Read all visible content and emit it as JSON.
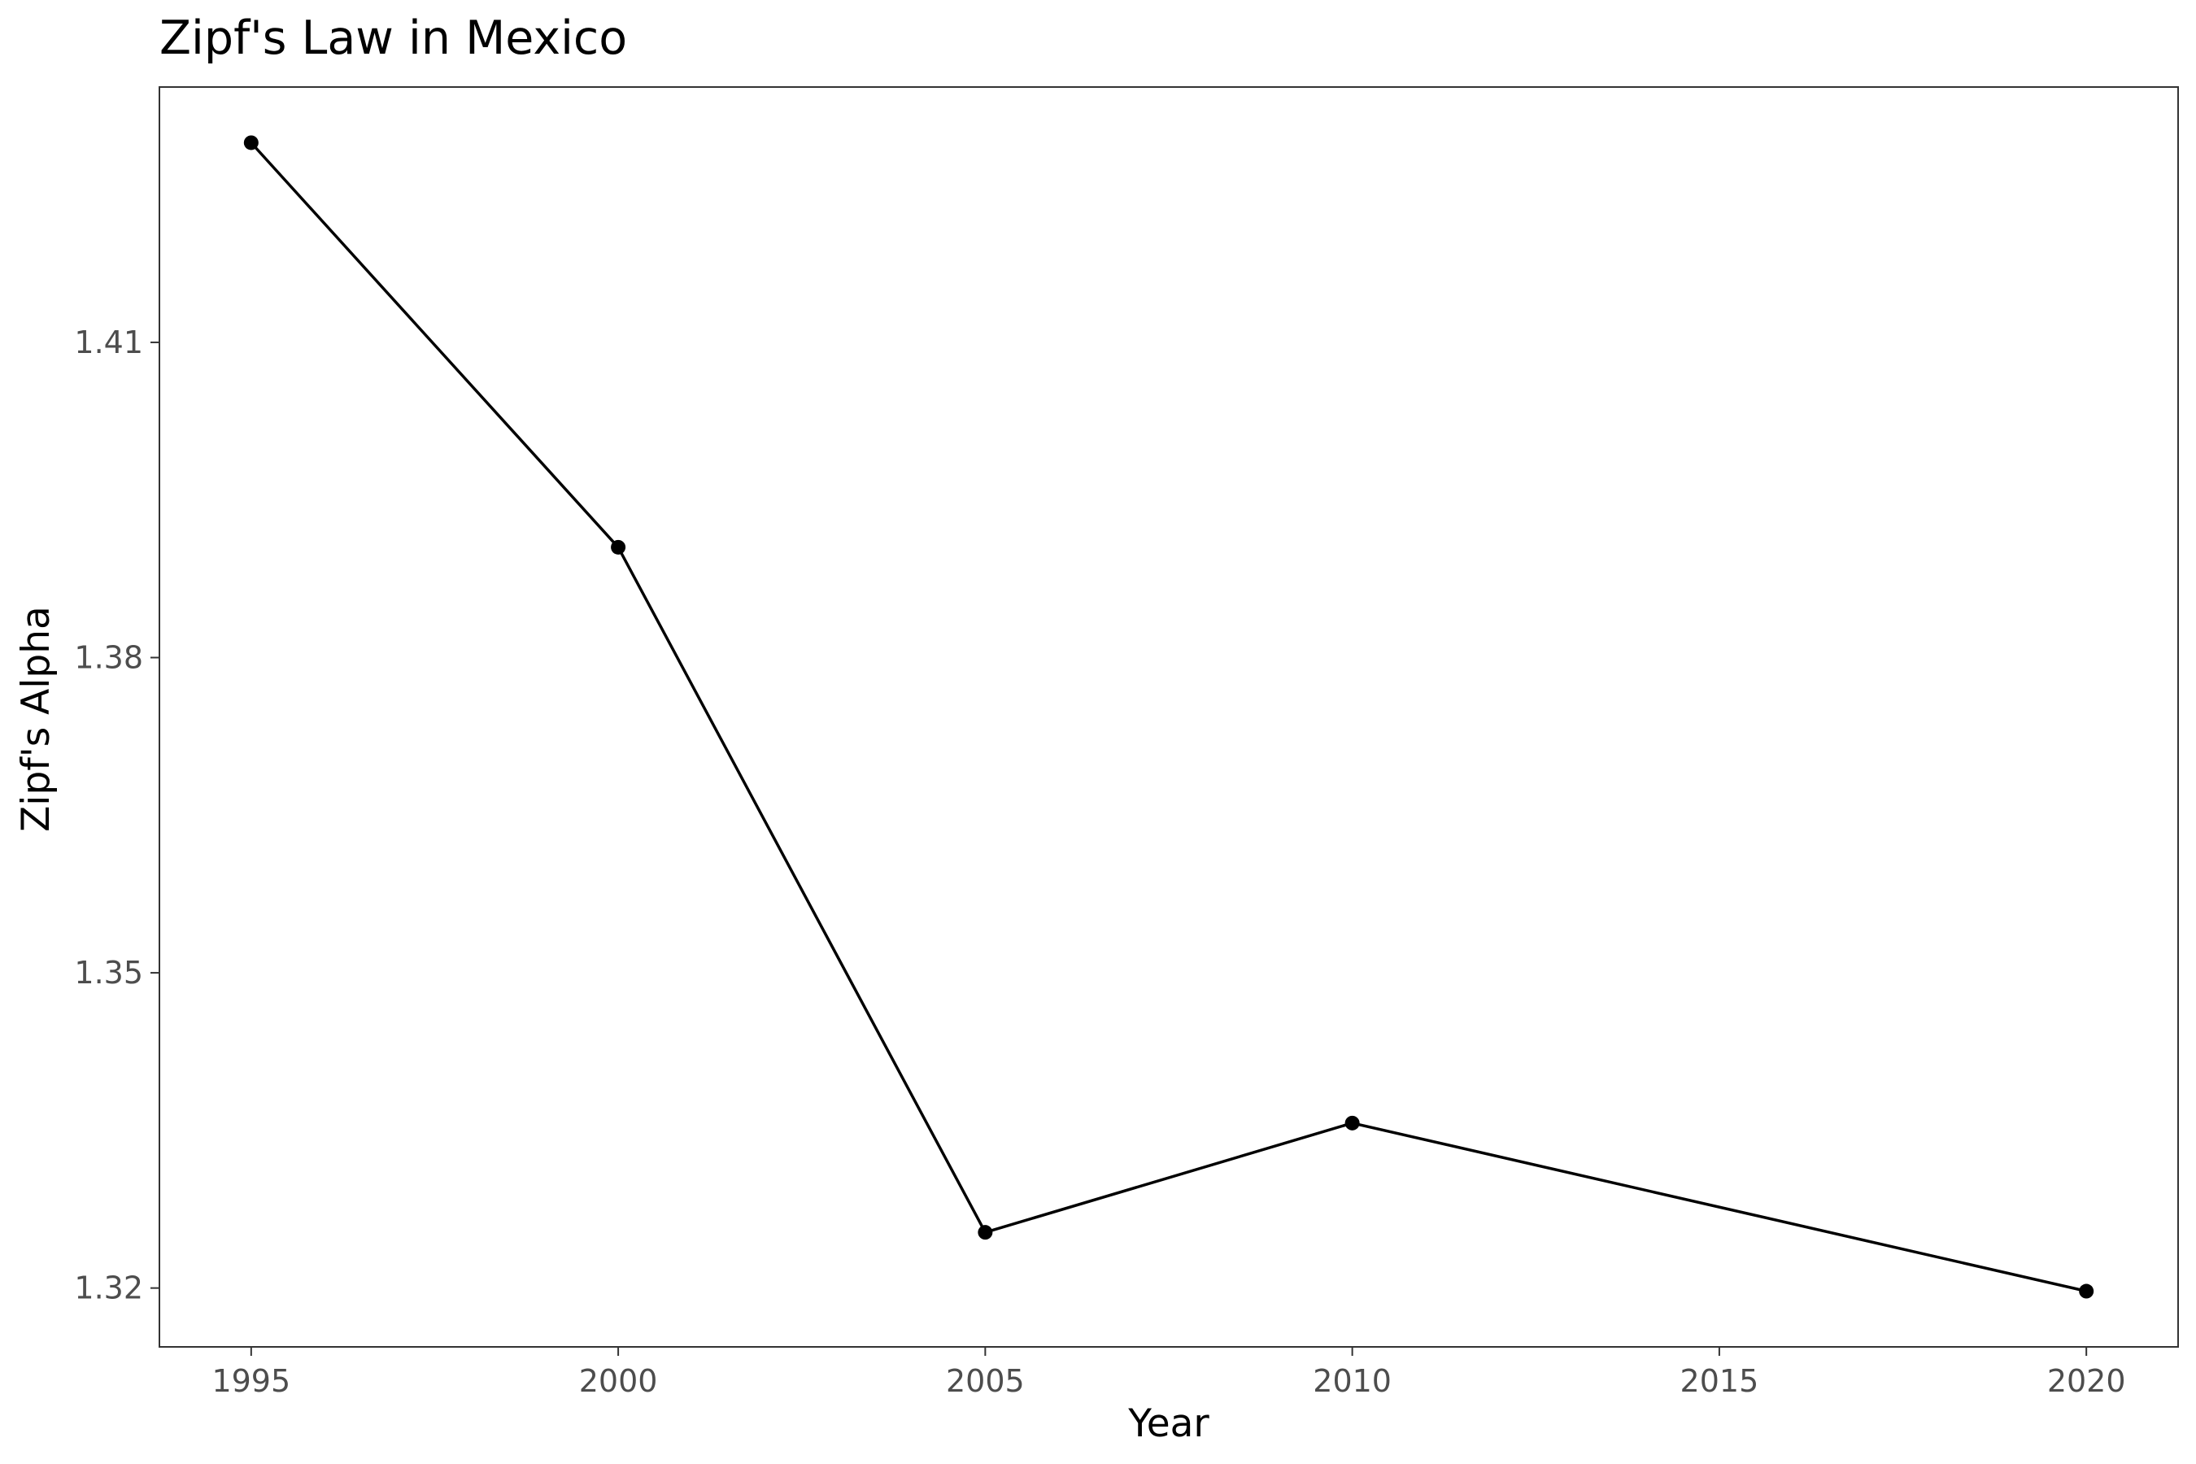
{
  "chart_data": {
    "type": "line",
    "title": "Zipf's Law in Mexico",
    "xlabel": "Year",
    "ylabel": "Zipf's Alpha",
    "x": [
      1995,
      2000,
      2005,
      2010,
      2020
    ],
    "series": [
      {
        "values": [
          1.429,
          1.3905,
          1.3253,
          1.3357,
          1.3197
        ]
      }
    ],
    "x_ticks": [
      "1995",
      "2000",
      "2005",
      "2010",
      "2015",
      "2020"
    ],
    "y_ticks": [
      "1.32",
      "1.35",
      "1.38",
      "1.41"
    ],
    "xlim": [
      1993.75,
      2021.25
    ],
    "ylim": [
      1.3144,
      1.4343
    ],
    "grid": false,
    "legend": "none",
    "colors": {
      "line": "#000000",
      "point": "#000000",
      "panel_border": "#333333",
      "tick_text": "#4d4d4d"
    }
  }
}
